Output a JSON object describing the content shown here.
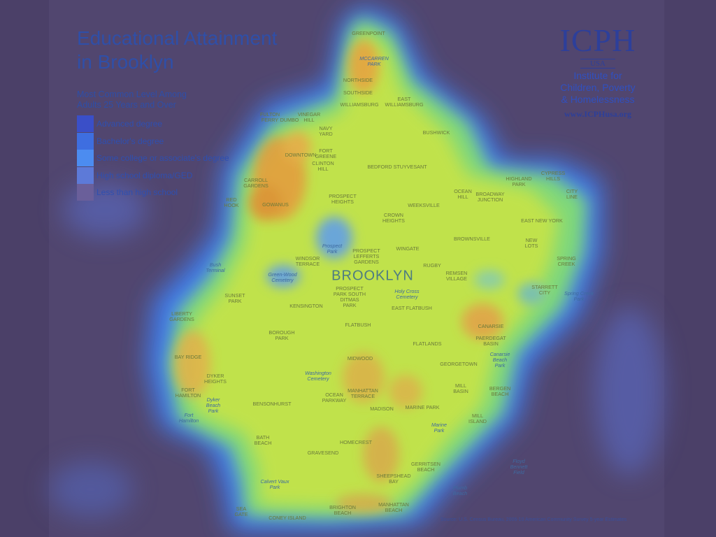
{
  "title": {
    "line1": "Educational Attainment",
    "line2": "in Brooklyn"
  },
  "subtitle": {
    "line1": "Most Common Level Among",
    "line2": "Adults 25 Years and Over"
  },
  "legend": [
    {
      "label": "Advanced degree",
      "color": "#3a4fc8"
    },
    {
      "label": "Bachelor's degree",
      "color": "#3e6ee0"
    },
    {
      "label": "Some college or associate's degree",
      "color": "#4c8cf0"
    },
    {
      "label": "High school diploma/GED",
      "color": "#5d7ad8"
    },
    {
      "label": "Less than high school",
      "color": "#6a5f9a"
    }
  ],
  "logo": {
    "mark": "ICPH",
    "country": "USA",
    "name_line1": "Institute for",
    "name_line2": "Children, Poverty",
    "name_line3": "& Homelessness",
    "url": "www.ICPHusa.org"
  },
  "borough_label": "BROOKLYN",
  "neighborhoods": [
    {
      "text": "GREENPOINT",
      "pos": [
        527,
        48
      ]
    },
    {
      "text": "MCCARREN\nPARK",
      "pos": [
        535,
        88
      ],
      "park": true
    },
    {
      "text": "NORTHSIDE",
      "pos": [
        512,
        115
      ]
    },
    {
      "text": "SOUTHSIDE",
      "pos": [
        512,
        133
      ]
    },
    {
      "text": "WILLIAMSBURG",
      "pos": [
        514,
        150
      ]
    },
    {
      "text": "EAST\nWILLIAMSBURG",
      "pos": [
        578,
        146
      ]
    },
    {
      "text": "FULTON\nFERRY",
      "pos": [
        386,
        168
      ]
    },
    {
      "text": "VINEGAR\nHILL",
      "pos": [
        442,
        168
      ]
    },
    {
      "text": "DUMBO",
      "pos": [
        414,
        172
      ]
    },
    {
      "text": "NAVY\nYARD",
      "pos": [
        466,
        188
      ]
    },
    {
      "text": "BUSHWICK",
      "pos": [
        624,
        190
      ]
    },
    {
      "text": "DOWNTOWN",
      "pos": [
        430,
        222
      ]
    },
    {
      "text": "FORT\nGREENE",
      "pos": [
        466,
        220
      ]
    },
    {
      "text": "CLINTON\nHILL",
      "pos": [
        462,
        238
      ]
    },
    {
      "text": "BEDFORD STUYVESANT",
      "pos": [
        568,
        239
      ]
    },
    {
      "text": "CYPRESS\nHILLS",
      "pos": [
        791,
        252
      ]
    },
    {
      "text": "HIGHLAND\nPARK",
      "pos": [
        742,
        260
      ]
    },
    {
      "text": "CARROLL\nGARDENS",
      "pos": [
        366,
        262
      ]
    },
    {
      "text": "OCEAN\nHILL",
      "pos": [
        662,
        278
      ]
    },
    {
      "text": "BROADWAY\nJUNCTION",
      "pos": [
        701,
        282
      ]
    },
    {
      "text": "CITY\nLINE",
      "pos": [
        818,
        278
      ]
    },
    {
      "text": "PROSPECT\nHEIGHTS",
      "pos": [
        490,
        285
      ]
    },
    {
      "text": "WEEKSVILLE",
      "pos": [
        606,
        294
      ]
    },
    {
      "text": "RED\nHOOK",
      "pos": [
        331,
        290
      ]
    },
    {
      "text": "GOWANUS",
      "pos": [
        394,
        293
      ]
    },
    {
      "text": "CROWN\nHEIGHTS",
      "pos": [
        563,
        312
      ]
    },
    {
      "text": "EAST NEW YORK",
      "pos": [
        775,
        316
      ]
    },
    {
      "text": "BROWNSVILLE",
      "pos": [
        675,
        342
      ]
    },
    {
      "text": "NEW\nLOTS",
      "pos": [
        760,
        348
      ]
    },
    {
      "text": "Prospect\nPark",
      "pos": [
        475,
        356
      ],
      "park": true
    },
    {
      "text": "PROSPECT\nLEFFERTS\nGARDENS",
      "pos": [
        524,
        367
      ]
    },
    {
      "text": "WINGATE",
      "pos": [
        583,
        356
      ]
    },
    {
      "text": "WINDSOR\nTERRACE",
      "pos": [
        440,
        374
      ]
    },
    {
      "text": "SPRING\nCREEK",
      "pos": [
        810,
        374
      ]
    },
    {
      "text": "RUGBY",
      "pos": [
        618,
        380
      ]
    },
    {
      "text": "Bush\nTerminal",
      "pos": [
        308,
        383
      ],
      "park": true
    },
    {
      "text": "REMSEN\nVILLAGE",
      "pos": [
        653,
        395
      ]
    },
    {
      "text": "Green-Wood\nCemetery",
      "pos": [
        404,
        397
      ],
      "park": true
    },
    {
      "text": "PROSPECT\nPARK SOUTH\nDITMAS\nPARK",
      "pos": [
        500,
        425
      ]
    },
    {
      "text": "Holy Cross\nCemetery",
      "pos": [
        582,
        421
      ],
      "park": true
    },
    {
      "text": "STARRETT\nCITY",
      "pos": [
        779,
        415
      ]
    },
    {
      "text": "Spring Creek\nPark",
      "pos": [
        828,
        424
      ],
      "park": true
    },
    {
      "text": "SUNSET\nPARK",
      "pos": [
        336,
        427
      ]
    },
    {
      "text": "KENSINGTON",
      "pos": [
        438,
        438
      ]
    },
    {
      "text": "EAST FLATBUSH",
      "pos": [
        589,
        441
      ]
    },
    {
      "text": "LIBERTY\nGARDENS",
      "pos": [
        260,
        453
      ]
    },
    {
      "text": "FLATBUSH",
      "pos": [
        512,
        465
      ]
    },
    {
      "text": "CANARSIE",
      "pos": [
        702,
        467
      ]
    },
    {
      "text": "BOROUGH\nPARK",
      "pos": [
        403,
        480
      ]
    },
    {
      "text": "PAERDEGAT\nBASIN",
      "pos": [
        702,
        488
      ]
    },
    {
      "text": "FLATLANDS",
      "pos": [
        611,
        492
      ]
    },
    {
      "text": "Canarsie\nBeach\nPark",
      "pos": [
        715,
        515
      ],
      "park": true
    },
    {
      "text": "BAY RIDGE",
      "pos": [
        269,
        511
      ]
    },
    {
      "text": "MIDWOOD",
      "pos": [
        515,
        513
      ]
    },
    {
      "text": "GEORGETOWN",
      "pos": [
        656,
        521
      ]
    },
    {
      "text": "DYKER\nHEIGHTS",
      "pos": [
        308,
        542
      ]
    },
    {
      "text": "Washington\nCemetery",
      "pos": [
        455,
        538
      ],
      "park": true
    },
    {
      "text": "MANHATTAN\nTERRACE",
      "pos": [
        519,
        563
      ]
    },
    {
      "text": "MILL\nBASIN",
      "pos": [
        659,
        556
      ]
    },
    {
      "text": "BERGEN\nBEACH",
      "pos": [
        715,
        560
      ]
    },
    {
      "text": "FORT\nHAMILTON",
      "pos": [
        269,
        562
      ]
    },
    {
      "text": "OCEAN\nPARKWAY",
      "pos": [
        478,
        569
      ]
    },
    {
      "text": "Dyker\nBeach\nPark",
      "pos": [
        305,
        580
      ],
      "park": true
    },
    {
      "text": "BENSONHURST",
      "pos": [
        389,
        578
      ]
    },
    {
      "text": "MADISON",
      "pos": [
        546,
        585
      ]
    },
    {
      "text": "MARINE PARK",
      "pos": [
        604,
        583
      ]
    },
    {
      "text": "MILL\nISLAND",
      "pos": [
        683,
        599
      ]
    },
    {
      "text": "Fort\nHamilton",
      "pos": [
        270,
        598
      ],
      "park": true
    },
    {
      "text": "Marine\nPark",
      "pos": [
        628,
        612
      ],
      "park": true
    },
    {
      "text": "BATH\nBEACH",
      "pos": [
        376,
        630
      ]
    },
    {
      "text": "HOMECREST",
      "pos": [
        509,
        633
      ]
    },
    {
      "text": "GRAVESEND",
      "pos": [
        462,
        648
      ]
    },
    {
      "text": "Floyd\nBennett\nField",
      "pos": [
        742,
        668
      ],
      "park": true
    },
    {
      "text": "GERRITSEN\nBEACH",
      "pos": [
        609,
        668
      ]
    },
    {
      "text": "SHEEPSHEAD\nBAY",
      "pos": [
        563,
        685
      ]
    },
    {
      "text": "Calvert Vaux\nPark",
      "pos": [
        393,
        693
      ],
      "park": true
    },
    {
      "text": "Plumb\nBeach",
      "pos": [
        658,
        702
      ],
      "park": true
    },
    {
      "text": "SEA\nGATE",
      "pos": [
        345,
        732
      ]
    },
    {
      "text": "BRIGHTON\nBEACH",
      "pos": [
        490,
        730
      ]
    },
    {
      "text": "MANHATTAN\nBEACH",
      "pos": [
        563,
        726
      ]
    },
    {
      "text": "CONEY ISLAND",
      "pos": [
        411,
        741
      ]
    }
  ],
  "source": "Source: U.S. Census Bureau, 2006-10 American Community Survey 5-year Estimates"
}
